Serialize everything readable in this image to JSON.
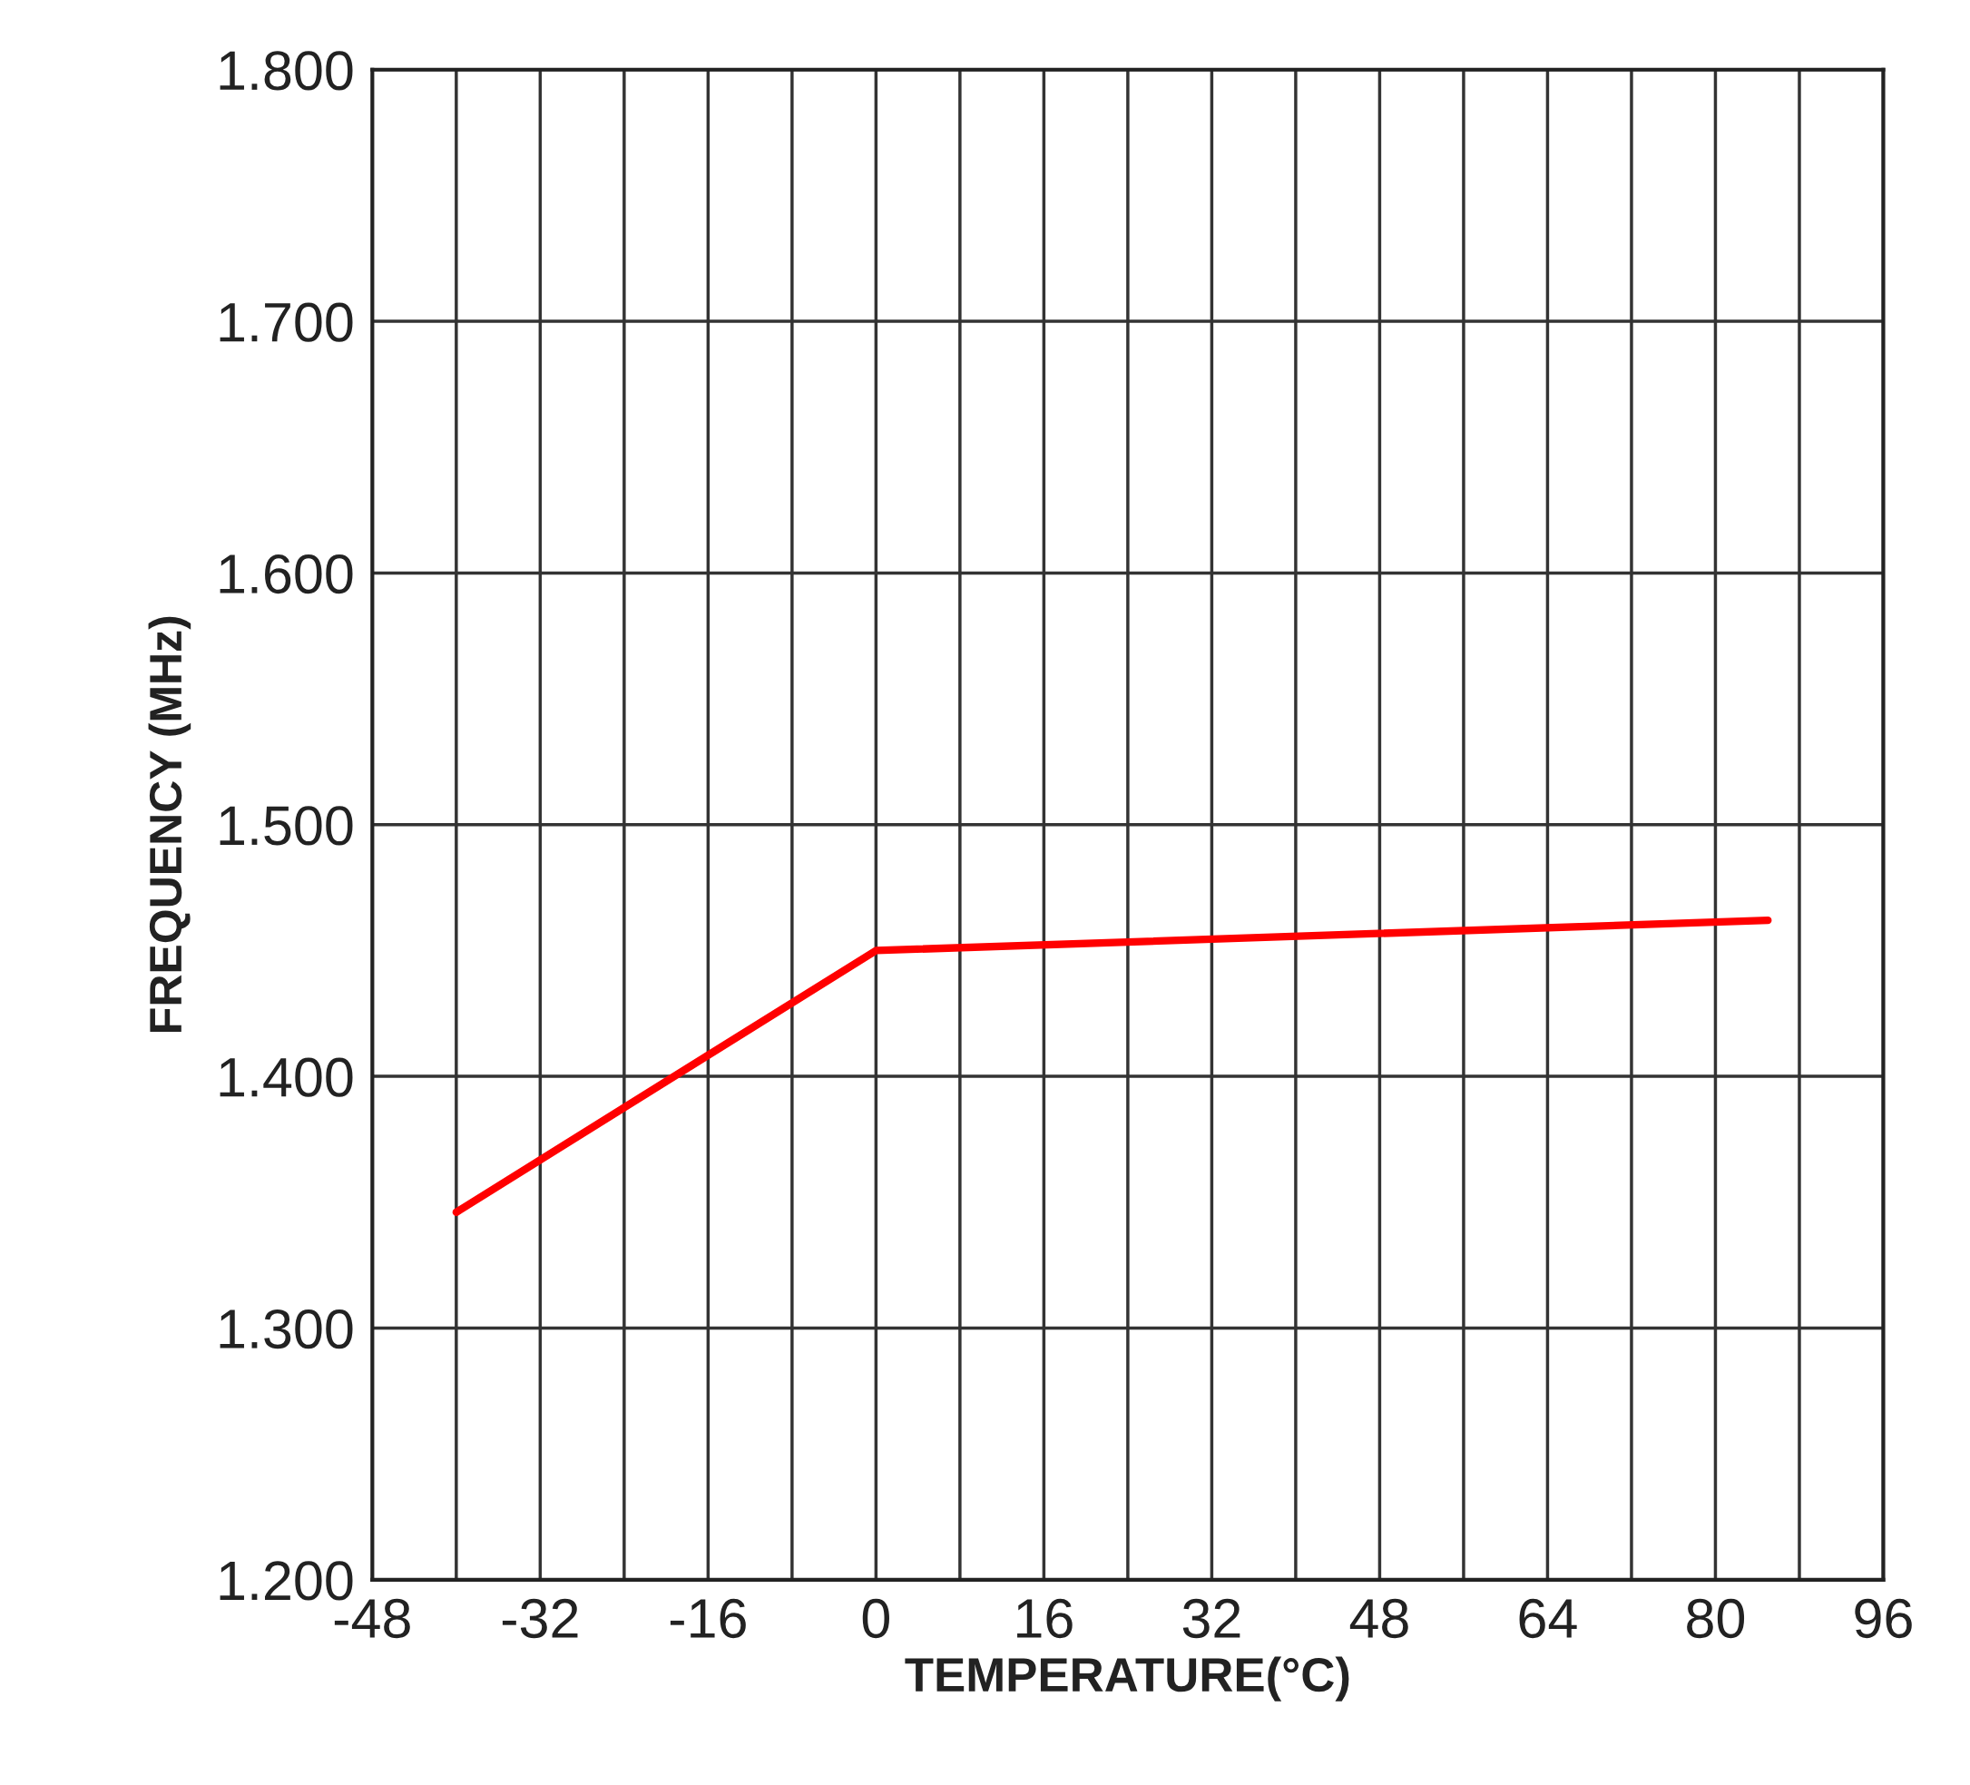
{
  "chart_data": {
    "type": "line",
    "xlabel": "TEMPERATURE(°C)",
    "ylabel": "FREQUENCY (MHz)",
    "x": [
      -40,
      0,
      85
    ],
    "series": [
      {
        "color": "#ff0000",
        "values": [
          1.346,
          1.45,
          1.462
        ]
      }
    ],
    "xlim": [
      -48,
      96
    ],
    "xticks": [
      {
        "value": -48,
        "label": "-48"
      },
      {
        "value": -40,
        "label": null
      },
      {
        "value": -32,
        "label": "-32"
      },
      {
        "value": -24,
        "label": null
      },
      {
        "value": -16,
        "label": "-16"
      },
      {
        "value": -8,
        "label": null
      },
      0,
      {
        "value": 8,
        "label": null
      },
      16,
      {
        "value": 24,
        "label": null
      },
      32,
      {
        "value": 40,
        "label": null
      },
      48,
      {
        "value": 56,
        "label": null
      },
      64,
      {
        "value": 72,
        "label": null
      },
      80,
      {
        "value": 88,
        "label": null
      },
      96
    ],
    "ylim": [
      1.2,
      1.8
    ],
    "yticks": [
      {
        "value": 1.2,
        "label": "1.200"
      },
      {
        "value": 1.3,
        "label": "1.300"
      },
      {
        "value": 1.4,
        "label": "1.400"
      },
      {
        "value": 1.5,
        "label": "1.500"
      },
      {
        "value": 1.6,
        "label": "1.600"
      },
      {
        "value": 1.7,
        "label": "1.700"
      },
      {
        "value": 1.8,
        "label": "1.800"
      }
    ],
    "grid": true,
    "marker": "none",
    "line_style": "solid"
  }
}
